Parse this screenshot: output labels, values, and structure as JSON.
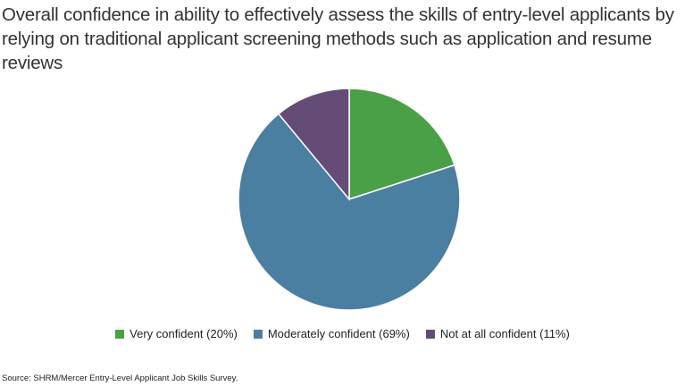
{
  "chart_data": {
    "type": "pie",
    "title": "Overall confidence in ability to effectively assess the skills of entry-level applicants by relying on traditional applicant screening methods such as application and resume reviews",
    "slices": [
      {
        "label": "Very confident (20%)",
        "value": 20,
        "color": "#4aa046"
      },
      {
        "label": "Moderately confident (69%)",
        "value": 69,
        "color": "#4a7fa1"
      },
      {
        "label": "Not at all confident (11%)",
        "value": 11,
        "color": "#644c77"
      }
    ],
    "legend_position": "bottom",
    "source": "Source: SHRM/Mercer Entry-Level Applicant Job Skills Survey."
  }
}
